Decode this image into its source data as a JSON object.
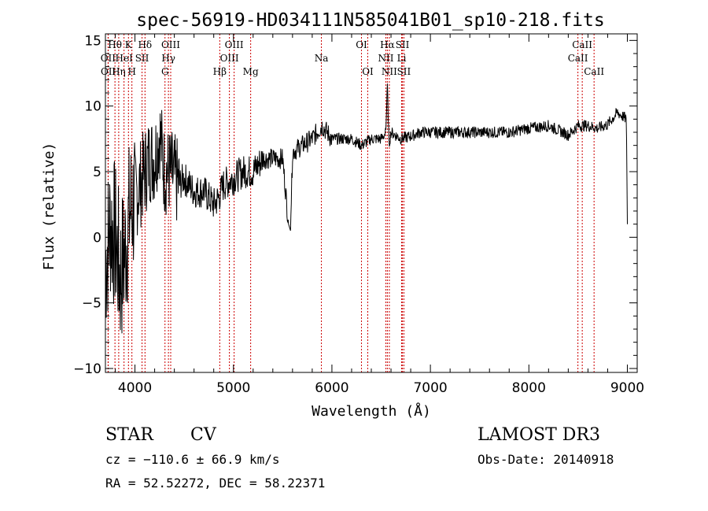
{
  "chart_data": {
    "type": "line",
    "title": "spec-56919-HD034111N585041B01_sp10-218.fits",
    "xlabel": "Wavelength (Å)",
    "ylabel": "Flux (relative)",
    "xlim": [
      3700,
      9100
    ],
    "ylim": [
      -10.3,
      15.5
    ],
    "xticks": [
      4000,
      5000,
      6000,
      7000,
      8000,
      9000
    ],
    "xtick_labels": [
      "4000",
      "5000",
      "6000",
      "7000",
      "8000",
      "9000"
    ],
    "yticks": [
      -10,
      -5,
      0,
      5,
      10,
      15
    ],
    "ytick_labels": [
      "−10",
      "−5",
      "0",
      "5",
      "10",
      "15"
    ],
    "spectrum": {
      "name": "flux",
      "x": [
        3700,
        3750,
        3800,
        3850,
        3900,
        3950,
        4000,
        4050,
        4100,
        4150,
        4200,
        4250,
        4300,
        4350,
        4400,
        4450,
        4500,
        4600,
        4700,
        4800,
        4850,
        4900,
        5000,
        5100,
        5200,
        5300,
        5400,
        5500,
        5560,
        5580,
        5600,
        5700,
        5800,
        5900,
        6000,
        6100,
        6200,
        6300,
        6400,
        6500,
        6550,
        6563,
        6580,
        6600,
        6700,
        6800,
        6900,
        7000,
        7200,
        7400,
        7600,
        7800,
        8000,
        8200,
        8400,
        8500,
        8600,
        8700,
        8800,
        8900,
        8990,
        9000
      ],
      "y": [
        -2,
        1,
        0,
        -3,
        -1,
        2,
        3,
        4,
        5,
        6,
        6,
        8,
        5,
        5,
        4.5,
        4,
        4.5,
        3.5,
        3.5,
        2.5,
        3,
        4,
        4.5,
        5,
        5,
        6,
        6,
        6,
        1,
        0.5,
        6.5,
        7,
        7.5,
        8.5,
        7.5,
        7.5,
        7.5,
        7,
        7.5,
        7.5,
        8,
        12,
        7,
        8,
        7.5,
        7.7,
        8,
        8,
        8,
        8,
        8,
        8,
        8.3,
        8.5,
        7.8,
        8.5,
        8.5,
        8.3,
        8.6,
        9.5,
        9.0,
        1
      ]
    },
    "spectral_lines": [
      {
        "label": "Hθ",
        "wavelength": 3797,
        "row": 0
      },
      {
        "label": "OII",
        "wavelength": 3727,
        "row": 1
      },
      {
        "label": "OII",
        "wavelength": 3729,
        "row": 2
      },
      {
        "label": "K",
        "wavelength": 3934,
        "row": 0
      },
      {
        "label": "HeI",
        "wavelength": 3889,
        "row": 1
      },
      {
        "label": "Hη",
        "wavelength": 3835,
        "row": 2
      },
      {
        "label": "Hδ",
        "wavelength": 4102,
        "row": 0
      },
      {
        "label": "SII",
        "wavelength": 4072,
        "row": 1
      },
      {
        "label": "H",
        "wavelength": 3969,
        "row": 2
      },
      {
        "label": "OIII",
        "wavelength": 4363,
        "row": 0
      },
      {
        "label": "Hγ",
        "wavelength": 4340,
        "row": 1
      },
      {
        "label": "G",
        "wavelength": 4305,
        "row": 2
      },
      {
        "label": "OIII",
        "wavelength": 5007,
        "row": 0
      },
      {
        "label": "OIII",
        "wavelength": 4959,
        "row": 1
      },
      {
        "label": "Hβ",
        "wavelength": 4861,
        "row": 2
      },
      {
        "label": "Mg",
        "wavelength": 5175,
        "row": 2
      },
      {
        "label": "Na",
        "wavelength": 5893,
        "row": 1
      },
      {
        "label": "OI",
        "wavelength": 6300,
        "row": 0
      },
      {
        "label": "OI",
        "wavelength": 6364,
        "row": 2
      },
      {
        "label": "Hα",
        "wavelength": 6563,
        "row": 0
      },
      {
        "label": "NII",
        "wavelength": 6548,
        "row": 1
      },
      {
        "label": "NII",
        "wavelength": 6583,
        "row": 2
      },
      {
        "label": "SII",
        "wavelength": 6716,
        "row": 0
      },
      {
        "label": "Li",
        "wavelength": 6708,
        "row": 1
      },
      {
        "label": "SII",
        "wavelength": 6731,
        "row": 2
      },
      {
        "label": "CaII",
        "wavelength": 8542,
        "row": 0
      },
      {
        "label": "CaII",
        "wavelength": 8498,
        "row": 1
      },
      {
        "label": "CaII",
        "wavelength": 8662,
        "row": 2
      }
    ],
    "line_marker_color": "#cc0000",
    "spectrum_color": "#000000"
  },
  "info": {
    "class": "STAR",
    "subclass": "CV",
    "survey": "LAMOST DR3",
    "cz": "cz = −110.6 ± 66.9 km/s",
    "obs_date": "Obs-Date: 20140918",
    "coords": "RA =  52.52272, DEC =  58.22371"
  }
}
